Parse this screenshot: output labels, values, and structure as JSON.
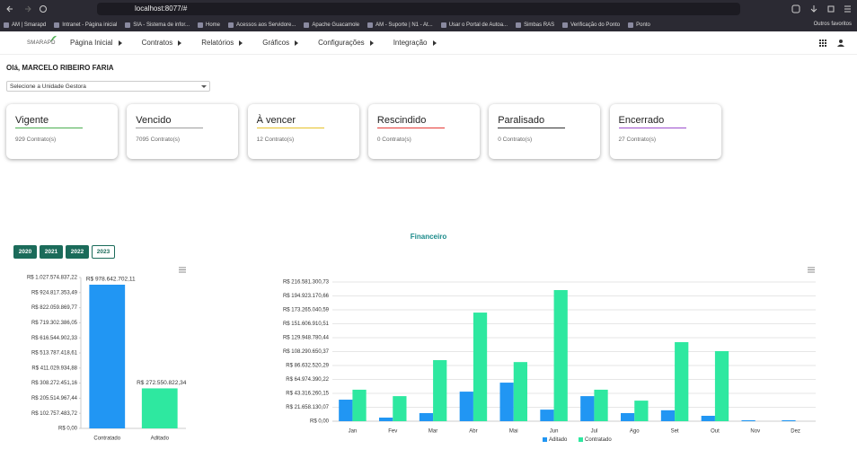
{
  "browser": {
    "url": "localhost:8077/#",
    "bookmarks": [
      "AM | Smarapd",
      "Intranet - Página inicial",
      "SIA - Sistema de infor...",
      "Home",
      "Acessos aos Servidore...",
      "Apache Guacamole",
      "AM - Suporte | N1 - At...",
      "Usar o Portal de Autoa...",
      "Simbas RAS",
      "Verificação do Ponto",
      "Ponto"
    ],
    "other_bookmarks": "Outros favoritos"
  },
  "nav": {
    "logo": "SMARAPD",
    "menu": [
      "Página Inicial",
      "Contratos",
      "Relatórios",
      "Gráficos",
      "Configurações",
      "Integração"
    ]
  },
  "greeting": "Olá, MARCELO RIBEIRO FARIA",
  "unit_select": "Selecione a Unidade Gestora",
  "cards": [
    {
      "title": "Vigente",
      "count": "929 Contrato(s)",
      "color": "#4caf50"
    },
    {
      "title": "Vencido",
      "count": "7095 Contrato(s)",
      "color": "#9e9e9e"
    },
    {
      "title": "À vencer",
      "count": "12 Contrato(s)",
      "color": "#e6c229"
    },
    {
      "title": "Rescindido",
      "count": "0 Contrato(s)",
      "color": "#e53935"
    },
    {
      "title": "Paralisado",
      "count": "0 Contrato(s)",
      "color": "#333333"
    },
    {
      "title": "Encerrado",
      "count": "27 Contrato(s)",
      "color": "#9c4dcc"
    }
  ],
  "section_title": "Financeiro",
  "year_buttons": [
    "2020",
    "2021",
    "2022",
    "2023"
  ],
  "selected_year": "2023",
  "chart_data": [
    {
      "type": "bar",
      "categories": [
        "Contratado",
        "Aditado"
      ],
      "values": [
        978642702.11,
        272550822.34
      ],
      "value_labels": [
        "R$ 978.642.702,11",
        "R$ 272.550.822,34"
      ],
      "colors": [
        "#2196f3",
        "#2ee8a0"
      ],
      "ylim": [
        0,
        1027574837.22
      ],
      "yticks": [
        {
          "value": 0,
          "label": "R$ 0,00"
        },
        {
          "value": 102757483.72,
          "label": "R$ 102.757.483,72"
        },
        {
          "value": 205514967.44,
          "label": "R$ 205.514.967,44"
        },
        {
          "value": 308272451.16,
          "label": "R$ 308.272.451,16"
        },
        {
          "value": 411029934.88,
          "label": "R$ 411.029.934,88"
        },
        {
          "value": 513787418.61,
          "label": "R$ 513.787.418,61"
        },
        {
          "value": 616544902.33,
          "label": "R$ 616.544.902,33"
        },
        {
          "value": 719302386.05,
          "label": "R$ 719.302.386,05"
        },
        {
          "value": 822059869.77,
          "label": "R$ 822.059.869,77"
        },
        {
          "value": 924817353.49,
          "label": "R$ 924.817.353,49"
        },
        {
          "value": 1027574837.22,
          "label": "R$ 1.027.574.837,22"
        }
      ],
      "grid": false
    },
    {
      "type": "grouped_bar",
      "categories": [
        "Jan",
        "Fev",
        "Mar",
        "Abr",
        "Mai",
        "Jun",
        "Jul",
        "Ago",
        "Set",
        "Out",
        "Nov",
        "Dez"
      ],
      "series": [
        {
          "name": "Aditado",
          "color": "#2196f3",
          "values": [
            33500000,
            5600000,
            12600000,
            46000000,
            60000000,
            18000000,
            39000000,
            12600000,
            17000000,
            8400000,
            1500000,
            1500000
          ]
        },
        {
          "name": "Contratado",
          "color": "#2ee8a0",
          "values": [
            49000000,
            39000000,
            95000000,
            169000000,
            92000000,
            204000000,
            49000000,
            32000000,
            123000000,
            109000000,
            0,
            0
          ]
        }
      ],
      "ylim": [
        0,
        216581300.73
      ],
      "yticks": [
        {
          "value": 0,
          "label": "R$ 0,00"
        },
        {
          "value": 21658130.07,
          "label": "R$ 21.658.130,07"
        },
        {
          "value": 43316260.15,
          "label": "R$ 43.316.260,15"
        },
        {
          "value": 64974390.22,
          "label": "R$ 64.974.390,22"
        },
        {
          "value": 86632520.29,
          "label": "R$ 86.632.520,29"
        },
        {
          "value": 108290650.37,
          "label": "R$ 108.290.650,37"
        },
        {
          "value": 129948780.44,
          "label": "R$ 129.948.780,44"
        },
        {
          "value": 151606910.51,
          "label": "R$ 151.606.910,51"
        },
        {
          "value": 173265040.59,
          "label": "R$ 173.265.040,59"
        },
        {
          "value": 194923170.66,
          "label": "R$ 194.923.170,66"
        },
        {
          "value": 216581300.73,
          "label": "R$ 216.581.300,73"
        }
      ],
      "grid": true,
      "legend": "bottom"
    }
  ]
}
